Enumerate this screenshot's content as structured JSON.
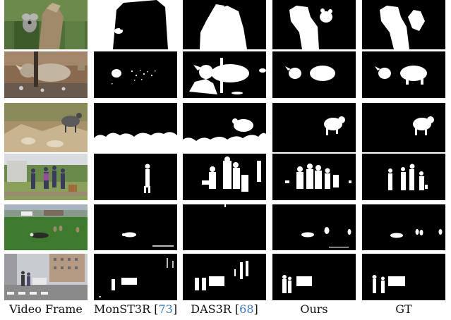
{
  "figure": {
    "columns": [
      {
        "id": "video-frame",
        "label": "Video Frame",
        "ref": ""
      },
      {
        "id": "monst3r",
        "label": "MonST3R",
        "ref": "73"
      },
      {
        "id": "das3r",
        "label": "DAS3R",
        "ref": "68"
      },
      {
        "id": "ours",
        "label": "Ours",
        "ref": ""
      },
      {
        "id": "gt",
        "label": "GT",
        "ref": ""
      }
    ],
    "rows": [
      {
        "id": "koala",
        "scene": "koala on tree trunk"
      },
      {
        "id": "rhino",
        "scene": "rhino in zoo enclosure"
      },
      {
        "id": "goat",
        "scene": "mountain goat on rocks"
      },
      {
        "id": "people",
        "scene": "group of people walking outdoors"
      },
      {
        "id": "dogs-geese",
        "scene": "dog and geese on grass field"
      },
      {
        "id": "street",
        "scene": "pedestrians and car at crosswalk"
      }
    ],
    "colors": {
      "mask_foreground": "#ffffff",
      "mask_background": "#000000",
      "citation_link": "#3a78c3"
    }
  }
}
